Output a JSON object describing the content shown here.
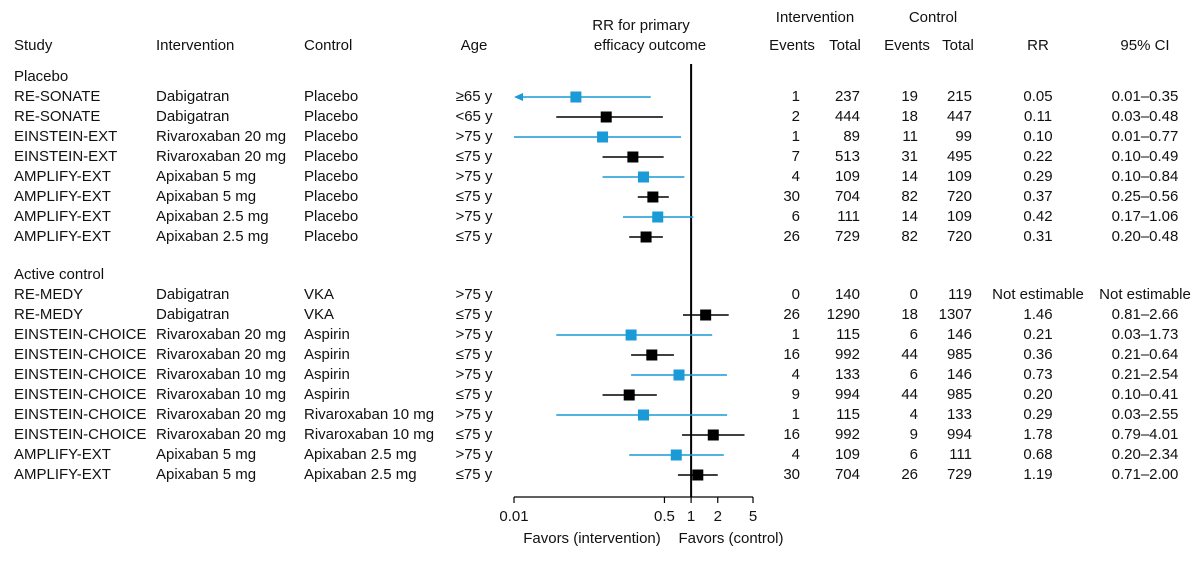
{
  "headers": {
    "study": "Study",
    "intervention": "Intervention",
    "control": "Control",
    "age": "Age",
    "rr_title_line1": "RR for primary",
    "rr_title_line2": "efficacy outcome",
    "intervention_group": "Intervention",
    "control_group": "Control",
    "events": "Events",
    "total": "Total",
    "rr": "RR",
    "ci": "95% CI"
  },
  "sections": [
    {
      "label": "Placebo",
      "rows": [
        {
          "study": "RE-SONATE",
          "intervention": "Dabigatran",
          "control": "Placebo",
          "age": "≥65 y",
          "i_events": "1",
          "i_total": "237",
          "c_events": "19",
          "c_total": "215",
          "rr": "0.05",
          "ci": "0.01–0.35",
          "rr_value": 0.05,
          "ci_low": 0.01,
          "ci_high": 0.35,
          "color": "#1a9ad6",
          "arrow_left": true
        },
        {
          "study": "RE-SONATE",
          "intervention": "Dabigatran",
          "control": "Placebo",
          "age": "<65 y",
          "i_events": "2",
          "i_total": "444",
          "c_events": "18",
          "c_total": "447",
          "rr": "0.11",
          "ci": "0.03–0.48",
          "rr_value": 0.11,
          "ci_low": 0.03,
          "ci_high": 0.48,
          "color": "#000000"
        },
        {
          "study": "EINSTEIN-EXT",
          "intervention": "Rivaroxaban 20 mg",
          "control": "Placebo",
          "age": ">75 y",
          "i_events": "1",
          "i_total": "89",
          "c_events": "11",
          "c_total": "99",
          "rr": "0.10",
          "ci": "0.01–0.77",
          "rr_value": 0.1,
          "ci_low": 0.01,
          "ci_high": 0.77,
          "color": "#1a9ad6"
        },
        {
          "study": "EINSTEIN-EXT",
          "intervention": "Rivaroxaban 20 mg",
          "control": "Placebo",
          "age": "≤75 y",
          "i_events": "7",
          "i_total": "513",
          "c_events": "31",
          "c_total": "495",
          "rr": "0.22",
          "ci": "0.10–0.49",
          "rr_value": 0.22,
          "ci_low": 0.1,
          "ci_high": 0.49,
          "color": "#000000"
        },
        {
          "study": "AMPLIFY-EXT",
          "intervention": "Apixaban 5 mg",
          "control": "Placebo",
          "age": ">75 y",
          "i_events": "4",
          "i_total": "109",
          "c_events": "14",
          "c_total": "109",
          "rr": "0.29",
          "ci": "0.10–0.84",
          "rr_value": 0.29,
          "ci_low": 0.1,
          "ci_high": 0.84,
          "color": "#1a9ad6"
        },
        {
          "study": "AMPLIFY-EXT",
          "intervention": "Apixaban 5 mg",
          "control": "Placebo",
          "age": "≤75 y",
          "i_events": "30",
          "i_total": "704",
          "c_events": "82",
          "c_total": "720",
          "rr": "0.37",
          "ci": "0.25–0.56",
          "rr_value": 0.37,
          "ci_low": 0.25,
          "ci_high": 0.56,
          "color": "#000000"
        },
        {
          "study": "AMPLIFY-EXT",
          "intervention": "Apixaban 2.5 mg",
          "control": "Placebo",
          "age": ">75 y",
          "i_events": "6",
          "i_total": "111",
          "c_events": "14",
          "c_total": "109",
          "rr": "0.42",
          "ci": "0.17–1.06",
          "rr_value": 0.42,
          "ci_low": 0.17,
          "ci_high": 1.06,
          "color": "#1a9ad6"
        },
        {
          "study": "AMPLIFY-EXT",
          "intervention": "Apixaban 2.5 mg",
          "control": "Placebo",
          "age": "≤75 y",
          "i_events": "26",
          "i_total": "729",
          "c_events": "82",
          "c_total": "720",
          "rr": "0.31",
          "ci": "0.20–0.48",
          "rr_value": 0.31,
          "ci_low": 0.2,
          "ci_high": 0.48,
          "color": "#000000"
        }
      ]
    },
    {
      "label": "Active control",
      "rows": [
        {
          "study": "RE-MEDY",
          "intervention": "Dabigatran",
          "control": "VKA",
          "age": ">75 y",
          "i_events": "0",
          "i_total": "140",
          "c_events": "0",
          "c_total": "119",
          "rr": "Not estimable",
          "ci": "Not estimable",
          "rr_value": null,
          "ci_low": null,
          "ci_high": null,
          "color": "#1a9ad6"
        },
        {
          "study": "RE-MEDY",
          "intervention": "Dabigatran",
          "control": "VKA",
          "age": "≤75 y",
          "i_events": "26",
          "i_total": "1290",
          "c_events": "18",
          "c_total": "1307",
          "rr": "1.46",
          "ci": "0.81–2.66",
          "rr_value": 1.46,
          "ci_low": 0.81,
          "ci_high": 2.66,
          "color": "#000000"
        },
        {
          "study": "EINSTEIN-CHOICE",
          "intervention": "Rivaroxaban 20 mg",
          "control": "Aspirin",
          "age": ">75 y",
          "i_events": "1",
          "i_total": "115",
          "c_events": "6",
          "c_total": "146",
          "rr": "0.21",
          "ci": "0.03–1.73",
          "rr_value": 0.21,
          "ci_low": 0.03,
          "ci_high": 1.73,
          "color": "#1a9ad6"
        },
        {
          "study": "EINSTEIN-CHOICE",
          "intervention": "Rivaroxaban 20 mg",
          "control": "Aspirin",
          "age": "≤75 y",
          "i_events": "16",
          "i_total": "992",
          "c_events": "44",
          "c_total": "985",
          "rr": "0.36",
          "ci": "0.21–0.64",
          "rr_value": 0.36,
          "ci_low": 0.21,
          "ci_high": 0.64,
          "color": "#000000"
        },
        {
          "study": "EINSTEIN-CHOICE",
          "intervention": "Rivaroxaban 10 mg",
          "control": "Aspirin",
          "age": ">75 y",
          "i_events": "4",
          "i_total": "133",
          "c_events": "6",
          "c_total": "146",
          "rr": "0.73",
          "ci": "0.21–2.54",
          "rr_value": 0.73,
          "ci_low": 0.21,
          "ci_high": 2.54,
          "color": "#1a9ad6"
        },
        {
          "study": "EINSTEIN-CHOICE",
          "intervention": "Rivaroxaban 10 mg",
          "control": "Aspirin",
          "age": "≤75 y",
          "i_events": "9",
          "i_total": "994",
          "c_events": "44",
          "c_total": "985",
          "rr": "0.20",
          "ci": "0.10–0.41",
          "rr_value": 0.2,
          "ci_low": 0.1,
          "ci_high": 0.41,
          "color": "#000000"
        },
        {
          "study": "EINSTEIN-CHOICE",
          "intervention": "Rivaroxaban 20 mg",
          "control": "Rivaroxaban 10 mg",
          "age": ">75 y",
          "i_events": "1",
          "i_total": "115",
          "c_events": "4",
          "c_total": "133",
          "rr": "0.29",
          "ci": "0.03–2.55",
          "rr_value": 0.29,
          "ci_low": 0.03,
          "ci_high": 2.55,
          "color": "#1a9ad6"
        },
        {
          "study": "EINSTEIN-CHOICE",
          "intervention": "Rivaroxaban 20 mg",
          "control": "Rivaroxaban 10 mg",
          "age": "≤75 y",
          "i_events": "16",
          "i_total": "992",
          "c_events": "9",
          "c_total": "994",
          "rr": "1.78",
          "ci": "0.79–4.01",
          "rr_value": 1.78,
          "ci_low": 0.79,
          "ci_high": 4.01,
          "color": "#000000"
        },
        {
          "study": "AMPLIFY-EXT",
          "intervention": "Apixaban 5 mg",
          "control": "Apixaban 2.5 mg",
          "age": ">75 y",
          "i_events": "4",
          "i_total": "109",
          "c_events": "6",
          "c_total": "111",
          "rr": "0.68",
          "ci": "0.20–2.34",
          "rr_value": 0.68,
          "ci_low": 0.2,
          "ci_high": 2.34,
          "color": "#1a9ad6"
        },
        {
          "study": "AMPLIFY-EXT",
          "intervention": "Apixaban 5 mg",
          "control": "Apixaban 2.5 mg",
          "age": "≤75 y",
          "i_events": "30",
          "i_total": "704",
          "c_events": "26",
          "c_total": "729",
          "rr": "1.19",
          "ci": "0.71–2.00",
          "rr_value": 1.19,
          "ci_low": 0.71,
          "ci_high": 2.0,
          "color": "#000000"
        }
      ]
    }
  ],
  "chart_data": {
    "type": "scatter",
    "x_scale": "log",
    "xlim": [
      0.01,
      5
    ],
    "reference_line": 1,
    "ticks": [
      {
        "value": 0.01,
        "label": "0.01"
      },
      {
        "value": 0.5,
        "label": "0.5"
      },
      {
        "value": 1,
        "label": "1"
      },
      {
        "value": 2,
        "label": "2"
      },
      {
        "value": 5,
        "label": "5"
      }
    ],
    "favors_left": "Favors (intervention)",
    "favors_right": "Favors (control)",
    "colors": {
      "over75": "#1a9ad6",
      "under75": "#000000"
    }
  }
}
